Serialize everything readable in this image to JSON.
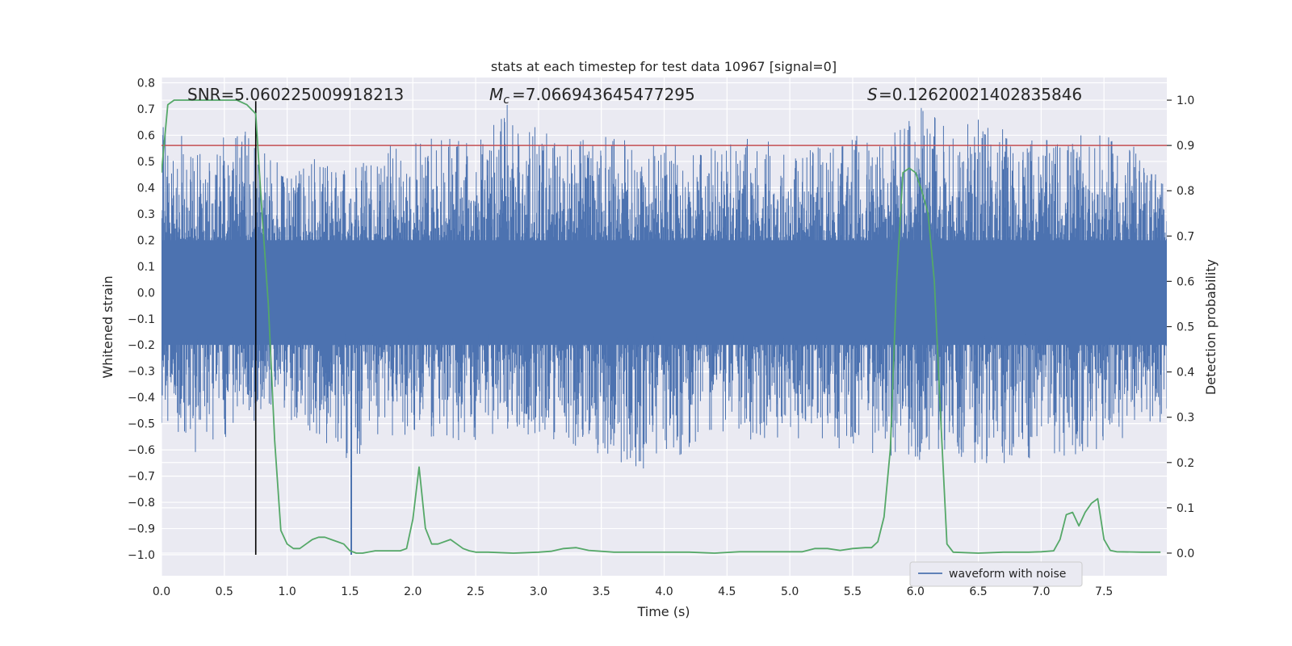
{
  "chart_data": {
    "type": "line",
    "title": "stats at each timestep for test data 10967 [signal=0]",
    "xlabel": "Time (s)",
    "ylabel": "Whitened strain",
    "y2label": "Detection probability",
    "xlim": [
      0.0,
      8.0
    ],
    "ylim": [
      -1.08,
      0.82
    ],
    "y2lim": [
      -0.05,
      1.05
    ],
    "x_ticks": [
      0.0,
      0.5,
      1.0,
      1.5,
      2.0,
      2.5,
      3.0,
      3.5,
      4.0,
      4.5,
      5.0,
      5.5,
      6.0,
      6.5,
      7.0,
      7.5
    ],
    "x_tick_labels": [
      "0.0",
      "0.5",
      "1.0",
      "1.5",
      "2.0",
      "2.5",
      "3.0",
      "3.5",
      "4.0",
      "4.5",
      "5.0",
      "5.5",
      "6.0",
      "6.5",
      "7.0",
      "7.5"
    ],
    "y_ticks": [
      0.8,
      0.7,
      0.6,
      0.5,
      0.4,
      0.3,
      0.2,
      0.1,
      0.0,
      -0.1,
      -0.2,
      -0.3,
      -0.4,
      -0.5,
      -0.6,
      -0.7,
      -0.8,
      -0.9,
      -1.0
    ],
    "y_tick_labels": [
      "0.8",
      "0.7",
      "0.6",
      "0.5",
      "0.4",
      "0.3",
      "0.2",
      "0.1",
      "0.0",
      "−0.1",
      "−0.2",
      "−0.3",
      "−0.4",
      "−0.5",
      "−0.6",
      "−0.7",
      "−0.8",
      "−0.9",
      "−1.0"
    ],
    "y2_ticks": [
      1.0,
      0.9,
      0.8,
      0.7,
      0.6,
      0.5,
      0.4,
      0.3,
      0.2,
      0.1,
      0.0
    ],
    "y2_tick_labels": [
      "1.0",
      "0.9",
      "0.8",
      "0.7",
      "0.6",
      "0.5",
      "0.4",
      "0.3",
      "0.2",
      "0.1",
      "0.0"
    ],
    "grid": true,
    "annotations": {
      "snr": "SNR=5.060225009918213",
      "mc": "=7.066943645477295",
      "s": "=0.12620021402835846"
    },
    "threshold_y2": 0.9,
    "marker_x": 0.75,
    "marker_y_range": [
      -1.0,
      0.73
    ],
    "legend": {
      "placement": "lower-right",
      "label": "waveform with noise"
    },
    "series": [
      {
        "name": "waveform with noise",
        "axis": "left",
        "color": "#4c72b0",
        "envelope_x": [
          0.0,
          0.25,
          0.5,
          0.75,
          1.0,
          1.25,
          1.5,
          1.75,
          2.0,
          2.25,
          2.5,
          2.75,
          3.0,
          3.25,
          3.5,
          3.75,
          4.0,
          4.25,
          4.5,
          4.75,
          5.0,
          5.25,
          5.5,
          5.75,
          6.0,
          6.25,
          6.5,
          6.75,
          7.0,
          7.25,
          7.5,
          7.75,
          8.0
        ],
        "envelope_upper": [
          0.68,
          0.56,
          0.62,
          0.62,
          0.44,
          0.52,
          0.48,
          0.56,
          0.58,
          0.62,
          0.6,
          0.72,
          0.62,
          0.6,
          0.6,
          0.58,
          0.58,
          0.54,
          0.6,
          0.6,
          0.55,
          0.58,
          0.6,
          0.62,
          0.72,
          0.66,
          0.66,
          0.62,
          0.58,
          0.6,
          0.6,
          0.56,
          0.45
        ],
        "envelope_lower": [
          -0.55,
          -0.63,
          -0.58,
          -0.5,
          -0.48,
          -0.56,
          -0.65,
          -0.55,
          -0.55,
          -0.55,
          -0.58,
          -0.55,
          -0.55,
          -0.58,
          -0.62,
          -0.68,
          -0.66,
          -0.58,
          -0.55,
          -0.58,
          -0.55,
          -0.6,
          -0.6,
          -0.62,
          -0.65,
          -0.6,
          -0.66,
          -0.69,
          -0.6,
          -0.66,
          -0.6,
          -0.54,
          -0.5
        ],
        "outlier_spike": {
          "x": 1.51,
          "y": -1.0
        }
      },
      {
        "axis": "right",
        "color": "#55a868",
        "x": [
          0.0,
          0.05,
          0.1,
          0.2,
          0.3,
          0.4,
          0.5,
          0.6,
          0.68,
          0.75,
          0.8,
          0.85,
          0.9,
          0.95,
          1.0,
          1.05,
          1.1,
          1.2,
          1.25,
          1.3,
          1.35,
          1.4,
          1.45,
          1.5,
          1.55,
          1.6,
          1.7,
          1.8,
          1.9,
          1.95,
          2.0,
          2.05,
          2.1,
          2.15,
          2.2,
          2.3,
          2.35,
          2.4,
          2.45,
          2.5,
          2.6,
          2.8,
          3.0,
          3.1,
          3.2,
          3.3,
          3.4,
          3.6,
          3.8,
          4.0,
          4.2,
          4.4,
          4.6,
          4.8,
          5.0,
          5.1,
          5.2,
          5.3,
          5.4,
          5.5,
          5.6,
          5.65,
          5.7,
          5.75,
          5.8,
          5.85,
          5.9,
          5.95,
          6.0,
          6.05,
          6.1,
          6.15,
          6.2,
          6.25,
          6.3,
          6.5,
          6.7,
          6.9,
          7.0,
          7.1,
          7.15,
          7.2,
          7.25,
          7.3,
          7.35,
          7.4,
          7.45,
          7.5,
          7.55,
          7.6,
          7.8,
          7.95
        ],
        "y": [
          0.84,
          0.99,
          1.0,
          1.0,
          1.0,
          1.0,
          1.0,
          1.0,
          0.99,
          0.97,
          0.75,
          0.55,
          0.25,
          0.05,
          0.02,
          0.01,
          0.01,
          0.03,
          0.035,
          0.035,
          0.03,
          0.025,
          0.02,
          0.005,
          0.0,
          0.0,
          0.005,
          0.005,
          0.005,
          0.01,
          0.075,
          0.19,
          0.055,
          0.02,
          0.02,
          0.03,
          0.02,
          0.01,
          0.005,
          0.002,
          0.002,
          0.0,
          0.002,
          0.004,
          0.01,
          0.012,
          0.006,
          0.002,
          0.002,
          0.002,
          0.002,
          0.0,
          0.003,
          0.003,
          0.003,
          0.003,
          0.01,
          0.01,
          0.006,
          0.01,
          0.012,
          0.012,
          0.025,
          0.08,
          0.23,
          0.6,
          0.84,
          0.85,
          0.84,
          0.8,
          0.75,
          0.6,
          0.3,
          0.02,
          0.002,
          0.0,
          0.002,
          0.002,
          0.003,
          0.005,
          0.03,
          0.085,
          0.09,
          0.06,
          0.09,
          0.11,
          0.12,
          0.03,
          0.006,
          0.003,
          0.002,
          0.002
        ]
      }
    ]
  }
}
